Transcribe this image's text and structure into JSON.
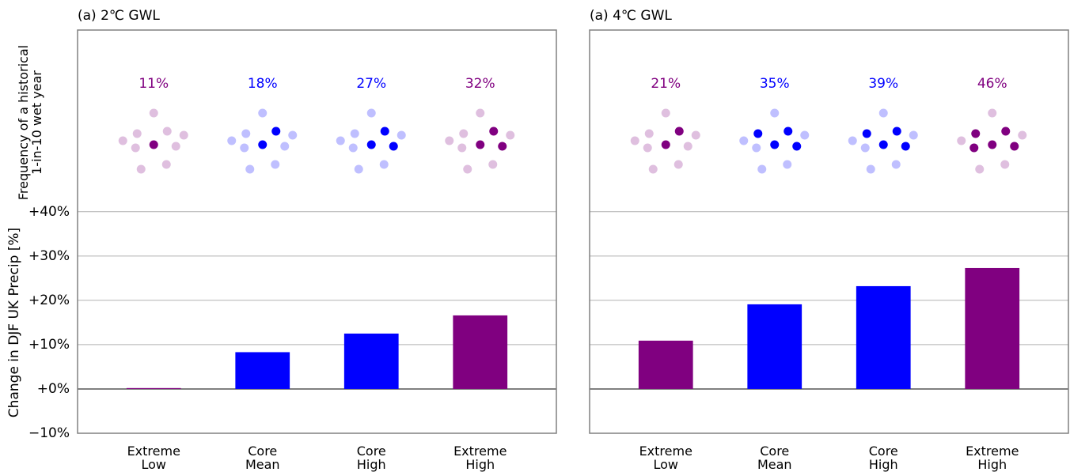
{
  "chart_data": [
    {
      "type": "bar",
      "title": "(a) 2℃ GWL",
      "ylabel": "Change in DJF UK Precip [%]",
      "frequency_label": "Frequency of a historical\n1-in-10 wet year",
      "categories": [
        "Extreme\nLow",
        "Core\nMean",
        "Core\nHigh",
        "Extreme\nHigh"
      ],
      "values": [
        0.2,
        8.3,
        12.5,
        16.6
      ],
      "colors": [
        "#800080",
        "#0000ff",
        "#0000ff",
        "#800080"
      ],
      "frequency": {
        "values": [
          11,
          18,
          27,
          32
        ],
        "value_labels": [
          "11%",
          "18%",
          "27%",
          "32%"
        ]
      },
      "ylim": [
        -10,
        81
      ],
      "yticks": [
        {
          "value": -10,
          "label": "−10%"
        },
        {
          "value": 0,
          "label": "+0%"
        },
        {
          "value": 10,
          "label": "+10%"
        },
        {
          "value": 20,
          "label": "+20%"
        },
        {
          "value": 30,
          "label": "+30%"
        },
        {
          "value": 40,
          "label": "+40%"
        }
      ],
      "grid": true
    },
    {
      "type": "bar",
      "title": "(a) 4℃ GWL",
      "categories": [
        "Extreme\nLow",
        "Core\nMean",
        "Core\nHigh",
        "Extreme\nHigh"
      ],
      "values": [
        10.9,
        19.1,
        23.2,
        27.3
      ],
      "colors": [
        "#800080",
        "#0000ff",
        "#0000ff",
        "#800080"
      ],
      "frequency": {
        "values": [
          21,
          35,
          39,
          46
        ],
        "value_labels": [
          "21%",
          "35%",
          "39%",
          "46%"
        ]
      },
      "sharey": true,
      "grid": true
    }
  ]
}
